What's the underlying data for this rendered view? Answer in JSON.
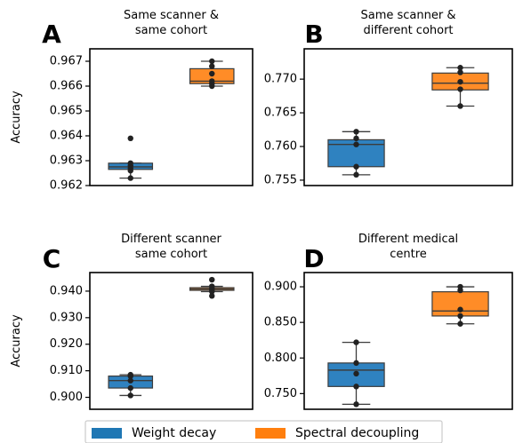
{
  "chart_data": [
    {
      "type": "box",
      "letter": "A",
      "title": [
        "Same scanner &",
        "same cohort"
      ],
      "ylabel": "Accuracy",
      "ylim": [
        0.962,
        0.9675
      ],
      "yticks": [
        0.962,
        0.963,
        0.964,
        0.965,
        0.966,
        0.967
      ],
      "yticklabels": [
        "0.962",
        "0.963",
        "0.964",
        "0.965",
        "0.966",
        "0.967"
      ],
      "series": [
        {
          "name": "Weight decay",
          "q1": 0.96265,
          "median": 0.96275,
          "q3": 0.9629,
          "whisker_low": 0.9623,
          "whisker_high": 0.9629,
          "points": [
            0.9623,
            0.9626,
            0.9627,
            0.9628,
            0.9629,
            0.9639
          ]
        },
        {
          "name": "Spectral decoupling",
          "q1": 0.9661,
          "median": 0.9662,
          "q3": 0.9667,
          "whisker_low": 0.966,
          "whisker_high": 0.967,
          "points": [
            0.966,
            0.9661,
            0.9662,
            0.9665,
            0.9668,
            0.967
          ]
        }
      ]
    },
    {
      "type": "box",
      "letter": "B",
      "title": [
        "Same scanner &",
        "different cohort"
      ],
      "ylabel": "",
      "ylim": [
        0.7542,
        0.7745
      ],
      "yticks": [
        0.755,
        0.76,
        0.765,
        0.77
      ],
      "yticklabels": [
        "0.755",
        "0.760",
        "0.765",
        "0.770"
      ],
      "series": [
        {
          "name": "Weight decay",
          "q1": 0.757,
          "median": 0.7603,
          "q3": 0.761,
          "whisker_low": 0.7558,
          "whisker_high": 0.7622,
          "points": [
            0.7558,
            0.757,
            0.7603,
            0.7612,
            0.7622
          ]
        },
        {
          "name": "Spectral decoupling",
          "q1": 0.7684,
          "median": 0.7694,
          "q3": 0.7709,
          "whisker_low": 0.766,
          "whisker_high": 0.7717,
          "points": [
            0.766,
            0.7685,
            0.7696,
            0.771,
            0.7717
          ]
        }
      ]
    },
    {
      "type": "box",
      "letter": "C",
      "title": [
        "Different scanner",
        "same cohort"
      ],
      "ylabel": "Accuracy",
      "ylim": [
        0.8955,
        0.947
      ],
      "yticks": [
        0.9,
        0.91,
        0.92,
        0.93,
        0.94
      ],
      "yticklabels": [
        "0.900",
        "0.910",
        "0.920",
        "0.930",
        "0.940"
      ],
      "series": [
        {
          "name": "Weight decay",
          "q1": 0.9035,
          "median": 0.9063,
          "q3": 0.908,
          "whisker_low": 0.9007,
          "whisker_high": 0.9085,
          "points": [
            0.9007,
            0.9035,
            0.9063,
            0.908,
            0.9085
          ]
        },
        {
          "name": "Spectral decoupling",
          "q1": 0.9403,
          "median": 0.9408,
          "q3": 0.9413,
          "whisker_low": 0.9398,
          "whisker_high": 0.9418,
          "points": [
            0.9382,
            0.9398,
            0.9405,
            0.941,
            0.9418,
            0.9443
          ]
        }
      ]
    },
    {
      "type": "box",
      "letter": "D",
      "title": [
        "Different medical",
        "centre"
      ],
      "ylabel": "",
      "ylim": [
        0.728,
        0.92
      ],
      "yticks": [
        0.75,
        0.8,
        0.85,
        0.9
      ],
      "yticklabels": [
        "0.750",
        "0.800",
        "0.850",
        "0.900"
      ],
      "series": [
        {
          "name": "Weight decay",
          "q1": 0.76,
          "median": 0.783,
          "q3": 0.793,
          "whisker_low": 0.735,
          "whisker_high": 0.822,
          "points": [
            0.735,
            0.76,
            0.778,
            0.793,
            0.822
          ]
        },
        {
          "name": "Spectral decoupling",
          "q1": 0.859,
          "median": 0.866,
          "q3": 0.893,
          "whisker_low": 0.848,
          "whisker_high": 0.9,
          "points": [
            0.848,
            0.859,
            0.868,
            0.895,
            0.9
          ]
        }
      ]
    }
  ],
  "legend": {
    "placement": "bottom-center",
    "items": [
      {
        "label": "Weight decay",
        "color": "#1f77b4"
      },
      {
        "label": "Spectral decoupling",
        "color": "#ff7f0e"
      }
    ]
  },
  "colors": {
    "weight_decay": "#2f82c0",
    "spectral_decoupling": "#ff8c27",
    "points": "#222222"
  }
}
